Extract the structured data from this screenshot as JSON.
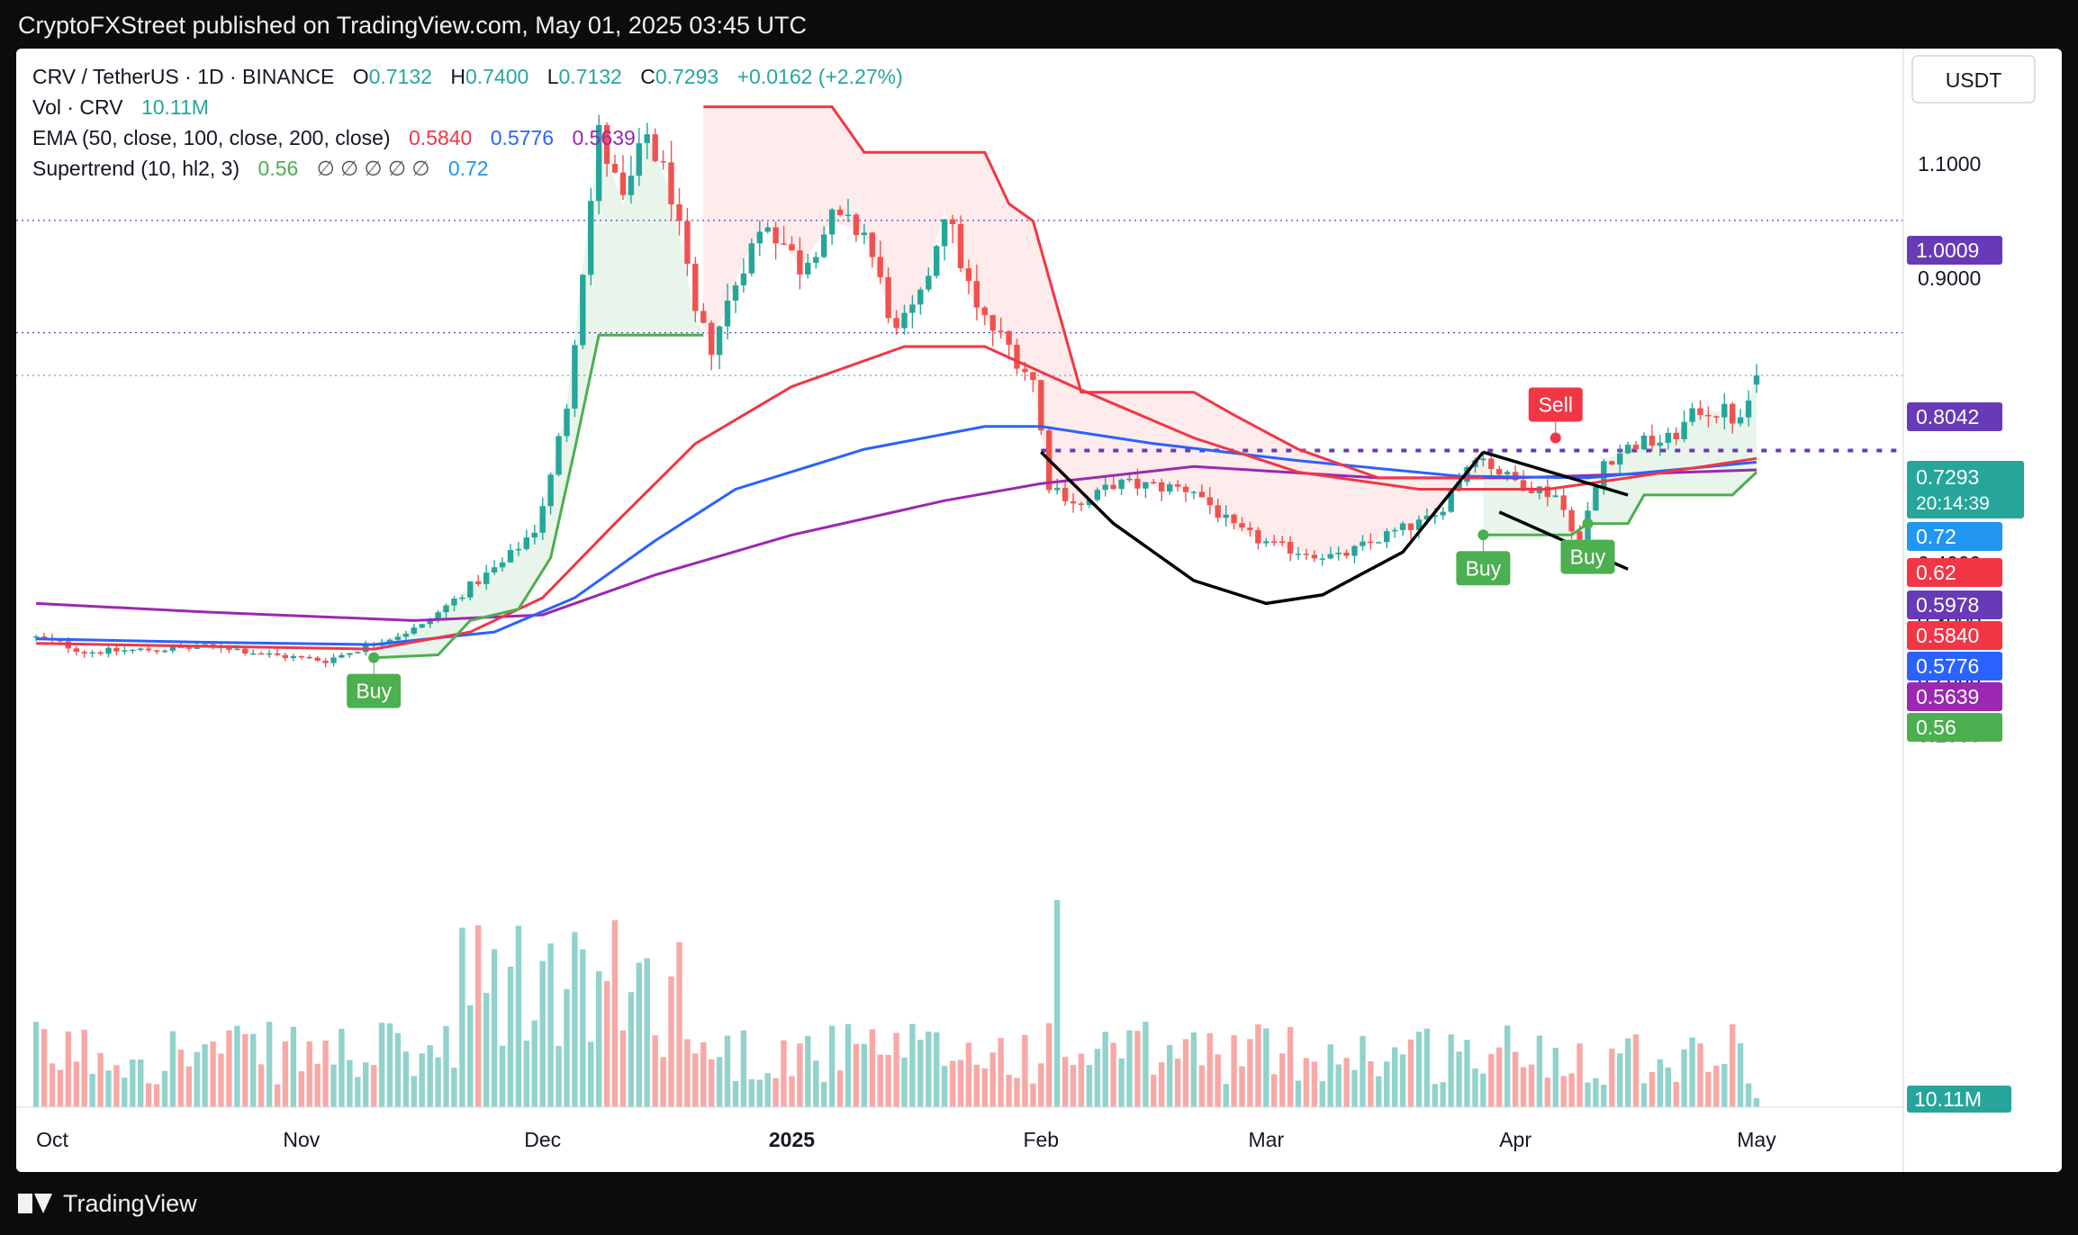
{
  "header": {
    "publisher_line": "CryptoFXStreet published on TradingView.com, May 01, 2025 03:45 UTC"
  },
  "footer": {
    "brand": "TradingView"
  },
  "legend": {
    "symbol": "CRV / TetherUS · 1D · BINANCE",
    "open_label": "O",
    "open": "0.7132",
    "high_label": "H",
    "high": "0.7400",
    "low_label": "L",
    "low": "0.7132",
    "close_label": "C",
    "close": "0.7293",
    "change": "+0.0162 (+2.27%)",
    "vol_label": "Vol · CRV",
    "vol": "10.11M",
    "ema_label": "EMA (50, close, 100, close, 200, close)",
    "ema50": "0.5840",
    "ema100": "0.5776",
    "ema200": "0.5639",
    "st_label": "Supertrend (10, hl2, 3)",
    "st_up": "0.56",
    "st_na": "∅ ∅ ∅ ∅ ∅",
    "st_down": "0.72"
  },
  "chart_data": {
    "type": "candlestick",
    "currency": "USDT",
    "price_axis_ticks": [
      "1.1000",
      "0.9000",
      "0.4000",
      "0.3000",
      "0.2000",
      "0.1000"
    ],
    "time_axis_ticks": [
      {
        "label": "Oct",
        "date": "2024-10-01"
      },
      {
        "label": "Nov",
        "date": "2024-11-01"
      },
      {
        "label": "Dec",
        "date": "2024-12-01"
      },
      {
        "label": "2025",
        "date": "2025-01-01"
      },
      {
        "label": "Feb",
        "date": "2025-02-01"
      },
      {
        "label": "Mar",
        "date": "2025-03-01"
      },
      {
        "label": "Apr",
        "date": "2025-04-01"
      },
      {
        "label": "May",
        "date": "2025-05-01"
      }
    ],
    "last_price": "0.7293",
    "countdown": "20:14:39",
    "volume_last": "10.11M",
    "price_badges": [
      {
        "text": "1.0009",
        "color": "#673ab7",
        "price": 1.0009
      },
      {
        "text": "0.8042",
        "color": "#673ab7",
        "price": 0.8042
      },
      {
        "text": "0.72",
        "color": "#2196f3",
        "price": 0.72
      },
      {
        "text": "0.62",
        "color": "#f23645",
        "price": 0.62
      },
      {
        "text": "0.5978",
        "color": "#673ab7",
        "price": 0.5978
      },
      {
        "text": "0.5840",
        "color": "#f23645",
        "price": 0.584
      },
      {
        "text": "0.5776",
        "color": "#2962ff",
        "price": 0.5776
      },
      {
        "text": "0.5639",
        "color": "#9c27b0",
        "price": 0.5639
      },
      {
        "text": "0.56",
        "color": "#4caf50",
        "price": 0.56
      }
    ],
    "horizontal_levels": [
      1.0009,
      0.8042,
      0.5978
    ],
    "signals": [
      {
        "text": "Buy",
        "date": "2024-11-10",
        "price": 0.235,
        "color": "#4caf50"
      },
      {
        "text": "Sell",
        "date": "2025-04-06",
        "price": 0.62,
        "color": "#f23645"
      },
      {
        "text": "Buy",
        "date": "2025-03-28",
        "price": 0.45,
        "color": "#4caf50"
      },
      {
        "text": "Buy",
        "date": "2025-04-10",
        "price": 0.47,
        "color": "#4caf50"
      }
    ],
    "colors": {
      "up": "#26a69a",
      "down": "#ef5350",
      "ema50": "#f23645",
      "ema100": "#2962ff",
      "ema200": "#9c27b0",
      "st_up": "#4caf50",
      "st_down": "#f23645"
    },
    "price_anchors": [
      {
        "date": "2024-09-29",
        "price": 0.27
      },
      {
        "date": "2024-10-02",
        "price": 0.26
      },
      {
        "date": "2024-10-05",
        "price": 0.245
      },
      {
        "date": "2024-10-15",
        "price": 0.25
      },
      {
        "date": "2024-10-22",
        "price": 0.255
      },
      {
        "date": "2024-10-28",
        "price": 0.24
      },
      {
        "date": "2024-11-04",
        "price": 0.23
      },
      {
        "date": "2024-11-10",
        "price": 0.26
      },
      {
        "date": "2024-11-16",
        "price": 0.29
      },
      {
        "date": "2024-11-22",
        "price": 0.36
      },
      {
        "date": "2024-11-26",
        "price": 0.4
      },
      {
        "date": "2024-11-30",
        "price": 0.46
      },
      {
        "date": "2024-12-02",
        "price": 0.55
      },
      {
        "date": "2024-12-04",
        "price": 0.68
      },
      {
        "date": "2024-12-06",
        "price": 0.92
      },
      {
        "date": "2024-12-08",
        "price": 1.15
      },
      {
        "date": "2024-12-11",
        "price": 1.03
      },
      {
        "date": "2024-12-14",
        "price": 1.15
      },
      {
        "date": "2024-12-17",
        "price": 1.05
      },
      {
        "date": "2024-12-20",
        "price": 0.83
      },
      {
        "date": "2024-12-22",
        "price": 0.78
      },
      {
        "date": "2024-12-26",
        "price": 0.93
      },
      {
        "date": "2024-12-29",
        "price": 1.0
      },
      {
        "date": "2025-01-02",
        "price": 0.92
      },
      {
        "date": "2025-01-06",
        "price": 1.0
      },
      {
        "date": "2025-01-10",
        "price": 0.98
      },
      {
        "date": "2025-01-14",
        "price": 0.8
      },
      {
        "date": "2025-01-17",
        "price": 0.86
      },
      {
        "date": "2025-01-20",
        "price": 1.02
      },
      {
        "date": "2025-01-24",
        "price": 0.84
      },
      {
        "date": "2025-01-28",
        "price": 0.78
      },
      {
        "date": "2025-01-31",
        "price": 0.72
      },
      {
        "date": "2025-02-02",
        "price": 0.54
      },
      {
        "date": "2025-02-06",
        "price": 0.5
      },
      {
        "date": "2025-02-10",
        "price": 0.54
      },
      {
        "date": "2025-02-20",
        "price": 0.53
      },
      {
        "date": "2025-02-25",
        "price": 0.46
      },
      {
        "date": "2025-03-02",
        "price": 0.43
      },
      {
        "date": "2025-03-10",
        "price": 0.41
      },
      {
        "date": "2025-03-16",
        "price": 0.45
      },
      {
        "date": "2025-03-22",
        "price": 0.48
      },
      {
        "date": "2025-03-27",
        "price": 0.595
      },
      {
        "date": "2025-03-31",
        "price": 0.55
      },
      {
        "date": "2025-04-06",
        "price": 0.52
      },
      {
        "date": "2025-04-09",
        "price": 0.44
      },
      {
        "date": "2025-04-12",
        "price": 0.58
      },
      {
        "date": "2025-04-16",
        "price": 0.61
      },
      {
        "date": "2025-04-20",
        "price": 0.615
      },
      {
        "date": "2025-04-24",
        "price": 0.67
      },
      {
        "date": "2025-04-27",
        "price": 0.665
      },
      {
        "date": "2025-04-29",
        "price": 0.645
      },
      {
        "date": "2025-05-01",
        "price": 0.7293
      }
    ],
    "ema50_points": [
      {
        "date": "2024-09-29",
        "price": 0.26
      },
      {
        "date": "2024-10-20",
        "price": 0.255
      },
      {
        "date": "2024-11-10",
        "price": 0.25
      },
      {
        "date": "2024-11-22",
        "price": 0.28
      },
      {
        "date": "2024-12-01",
        "price": 0.34
      },
      {
        "date": "2024-12-10",
        "price": 0.47
      },
      {
        "date": "2024-12-20",
        "price": 0.61
      },
      {
        "date": "2025-01-01",
        "price": 0.71
      },
      {
        "date": "2025-01-15",
        "price": 0.78
      },
      {
        "date": "2025-01-25",
        "price": 0.78
      },
      {
        "date": "2025-02-05",
        "price": 0.71
      },
      {
        "date": "2025-02-20",
        "price": 0.62
      },
      {
        "date": "2025-03-05",
        "price": 0.56
      },
      {
        "date": "2025-03-20",
        "price": 0.53
      },
      {
        "date": "2025-04-05",
        "price": 0.53
      },
      {
        "date": "2025-04-15",
        "price": 0.55
      },
      {
        "date": "2025-05-01",
        "price": 0.584
      }
    ],
    "ema100_points": [
      {
        "date": "2024-09-29",
        "price": 0.268
      },
      {
        "date": "2024-10-20",
        "price": 0.262
      },
      {
        "date": "2024-11-10",
        "price": 0.258
      },
      {
        "date": "2024-11-25",
        "price": 0.28
      },
      {
        "date": "2024-12-05",
        "price": 0.34
      },
      {
        "date": "2024-12-15",
        "price": 0.44
      },
      {
        "date": "2024-12-25",
        "price": 0.53
      },
      {
        "date": "2025-01-10",
        "price": 0.6
      },
      {
        "date": "2025-01-25",
        "price": 0.64
      },
      {
        "date": "2025-02-01",
        "price": 0.64
      },
      {
        "date": "2025-02-15",
        "price": 0.61
      },
      {
        "date": "2025-03-05",
        "price": 0.58
      },
      {
        "date": "2025-03-25",
        "price": 0.553
      },
      {
        "date": "2025-04-10",
        "price": 0.55
      },
      {
        "date": "2025-05-01",
        "price": 0.5776
      }
    ],
    "ema200_points": [
      {
        "date": "2024-09-29",
        "price": 0.33
      },
      {
        "date": "2024-10-20",
        "price": 0.315
      },
      {
        "date": "2024-11-15",
        "price": 0.3
      },
      {
        "date": "2024-12-01",
        "price": 0.31
      },
      {
        "date": "2024-12-15",
        "price": 0.38
      },
      {
        "date": "2025-01-01",
        "price": 0.45
      },
      {
        "date": "2025-01-20",
        "price": 0.51
      },
      {
        "date": "2025-02-01",
        "price": 0.54
      },
      {
        "date": "2025-02-20",
        "price": 0.57
      },
      {
        "date": "2025-03-15",
        "price": 0.55
      },
      {
        "date": "2025-04-01",
        "price": 0.55
      },
      {
        "date": "2025-05-01",
        "price": 0.5639
      }
    ],
    "supertrend_up_1": [
      {
        "date": "2024-11-10",
        "price": 0.235
      },
      {
        "date": "2024-11-18",
        "price": 0.24
      },
      {
        "date": "2024-11-22",
        "price": 0.3
      },
      {
        "date": "2024-11-28",
        "price": 0.32
      },
      {
        "date": "2024-12-02",
        "price": 0.41
      },
      {
        "date": "2024-12-05",
        "price": 0.6
      },
      {
        "date": "2024-12-08",
        "price": 0.8
      },
      {
        "date": "2024-12-21",
        "price": 0.8
      }
    ],
    "supertrend_down_1": [
      {
        "date": "2024-12-21",
        "price": 1.2
      },
      {
        "date": "2025-01-06",
        "price": 1.2
      },
      {
        "date": "2025-01-10",
        "price": 1.12
      },
      {
        "date": "2025-01-25",
        "price": 1.12
      },
      {
        "date": "2025-01-28",
        "price": 1.03
      },
      {
        "date": "2025-01-31",
        "price": 1.0
      },
      {
        "date": "2025-02-04",
        "price": 0.8
      },
      {
        "date": "2025-02-06",
        "price": 0.7
      },
      {
        "date": "2025-02-20",
        "price": 0.7
      },
      {
        "date": "2025-02-25",
        "price": 0.66
      },
      {
        "date": "2025-03-05",
        "price": 0.6
      },
      {
        "date": "2025-03-15",
        "price": 0.55
      },
      {
        "date": "2025-03-28",
        "price": 0.55
      }
    ],
    "supertrend_up_2": [
      {
        "date": "2025-03-28",
        "price": 0.45
      },
      {
        "date": "2025-04-08",
        "price": 0.45
      },
      {
        "date": "2025-04-10",
        "price": 0.47
      },
      {
        "date": "2025-04-15",
        "price": 0.47
      },
      {
        "date": "2025-04-17",
        "price": 0.52
      },
      {
        "date": "2025-04-28",
        "price": 0.52
      },
      {
        "date": "2025-05-01",
        "price": 0.56
      }
    ],
    "cup_curve": [
      {
        "date": "2025-02-01",
        "price": 0.595
      },
      {
        "date": "2025-02-10",
        "price": 0.47
      },
      {
        "date": "2025-02-20",
        "price": 0.37
      },
      {
        "date": "2025-03-01",
        "price": 0.33
      },
      {
        "date": "2025-03-08",
        "price": 0.345
      },
      {
        "date": "2025-03-18",
        "price": 0.42
      },
      {
        "date": "2025-03-28",
        "price": 0.595
      }
    ],
    "channel_upper": [
      {
        "date": "2025-03-28",
        "price": 0.595
      },
      {
        "date": "2025-04-15",
        "price": 0.52
      }
    ],
    "channel_lower": [
      {
        "date": "2025-03-30",
        "price": 0.49
      },
      {
        "date": "2025-04-15",
        "price": 0.39
      }
    ]
  }
}
